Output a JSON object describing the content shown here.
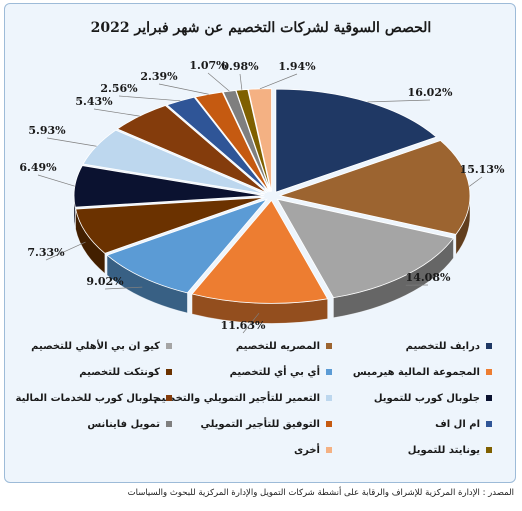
{
  "chart_data": {
    "type": "pie",
    "style": "3d-exploded",
    "title": "الحصص السوقية لشركات التخصيم عن شهر فبراير 2022",
    "legend_position": "bottom",
    "value_format": "percent",
    "slices": [
      {
        "name": "درايف للتخصيم",
        "value": 16.02,
        "label": "16.02%",
        "color": "#1f3864"
      },
      {
        "name": "المصريه للتخصيم",
        "value": 15.13,
        "label": "15.13%",
        "color": "#9c6430"
      },
      {
        "name": "كيو ان بي الأهلي للتخصيم",
        "value": 14.08,
        "label": "14.08%",
        "color": "#a5a5a5"
      },
      {
        "name": "المجموعة المالية هيرميس",
        "value": 11.63,
        "label": "11.63%",
        "color": "#ed7d31"
      },
      {
        "name": "أي بي أي للتخصيم",
        "value": 9.02,
        "label": "9.02%",
        "color": "#5b9bd5"
      },
      {
        "name": "كونتكت للتخصيم",
        "value": 7.33,
        "label": "7.33%",
        "color": "#6b3200"
      },
      {
        "name": "جلوبال كورب للتمويل",
        "value": 6.49,
        "label": "6.49%",
        "color": "#0b1230"
      },
      {
        "name": "التعمير للتأجير التمويلي والتخصيم",
        "value": 5.93,
        "label": "5.93%",
        "color": "#bdd7ee"
      },
      {
        "name": "جلوبال كورب للخدمات المالية",
        "value": 5.43,
        "label": "5.43%",
        "color": "#843c0c"
      },
      {
        "name": "ام ال اف",
        "value": 2.56,
        "label": "2.56%",
        "color": "#2f5597"
      },
      {
        "name": "التوفيق للتأجير التمويلي",
        "value": 2.39,
        "label": "2.39%",
        "color": "#c55a11"
      },
      {
        "name": "تمويل فاينانس",
        "value": 1.07,
        "label": "1.07%",
        "color": "#7f7f7f"
      },
      {
        "name": "يونايتد للتمويل",
        "value": 0.98,
        "label": "0.98%",
        "color": "#7f6000"
      },
      {
        "name": "أخرى",
        "value": 1.94,
        "label": "1.94%",
        "color": "#f4b183"
      }
    ]
  },
  "source_text": "المصدر : الإدارة المركزية للإشراف والرقابة على أنشطة شركات التمويل والإدارة المركزية للبحوث والسياسات"
}
